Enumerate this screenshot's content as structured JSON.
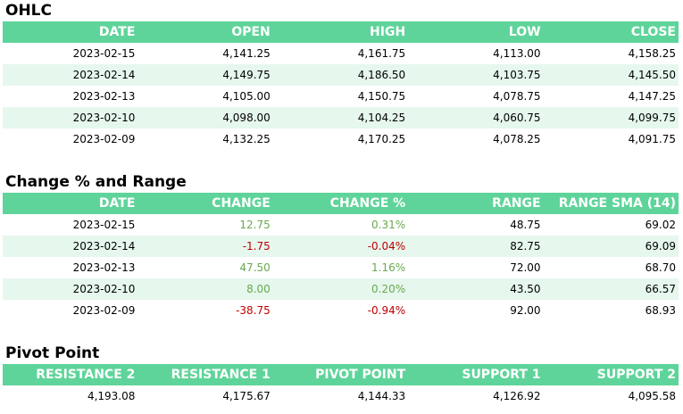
{
  "ohlc": {
    "title": "OHLC",
    "headers": [
      "DATE",
      "OPEN",
      "HIGH",
      "LOW",
      "CLOSE"
    ],
    "rows": [
      [
        "2023-02-15",
        "4,141.25",
        "4,161.75",
        "4,113.00",
        "4,158.25"
      ],
      [
        "2023-02-14",
        "4,149.75",
        "4,186.50",
        "4,103.75",
        "4,145.50"
      ],
      [
        "2023-02-13",
        "4,105.00",
        "4,150.75",
        "4,078.75",
        "4,147.25"
      ],
      [
        "2023-02-10",
        "4,098.00",
        "4,104.25",
        "4,060.75",
        "4,099.75"
      ],
      [
        "2023-02-09",
        "4,132.25",
        "4,170.25",
        "4,078.25",
        "4,091.75"
      ]
    ]
  },
  "change": {
    "title": "Change % and Range",
    "headers": [
      "DATE",
      "CHANGE",
      "CHANGE %",
      "RANGE",
      "RANGE SMA (14)"
    ],
    "rows": [
      [
        "2023-02-15",
        "12.75",
        "0.31%",
        "48.75",
        "69.02"
      ],
      [
        "2023-02-14",
        "-1.75",
        "-0.04%",
        "82.75",
        "69.09"
      ],
      [
        "2023-02-13",
        "47.50",
        "1.16%",
        "72.00",
        "68.70"
      ],
      [
        "2023-02-10",
        "8.00",
        "0.20%",
        "43.50",
        "66.57"
      ],
      [
        "2023-02-09",
        "-38.75",
        "-0.94%",
        "92.00",
        "68.93"
      ]
    ]
  },
  "pivot": {
    "title": "Pivot Point",
    "headers": [
      "RESISTANCE 2",
      "RESISTANCE 1",
      "PIVOT POINT",
      "SUPPORT 1",
      "SUPPORT 2"
    ],
    "rows": [
      [
        "4,193.08",
        "4,175.67",
        "4,144.33",
        "4,126.92",
        "4,095.58"
      ]
    ]
  },
  "colors": {
    "header_bg": "#5fd49a",
    "alt_row_bg": "#e6f7ee",
    "positive": "#6aa84f",
    "negative": "#c00000"
  }
}
